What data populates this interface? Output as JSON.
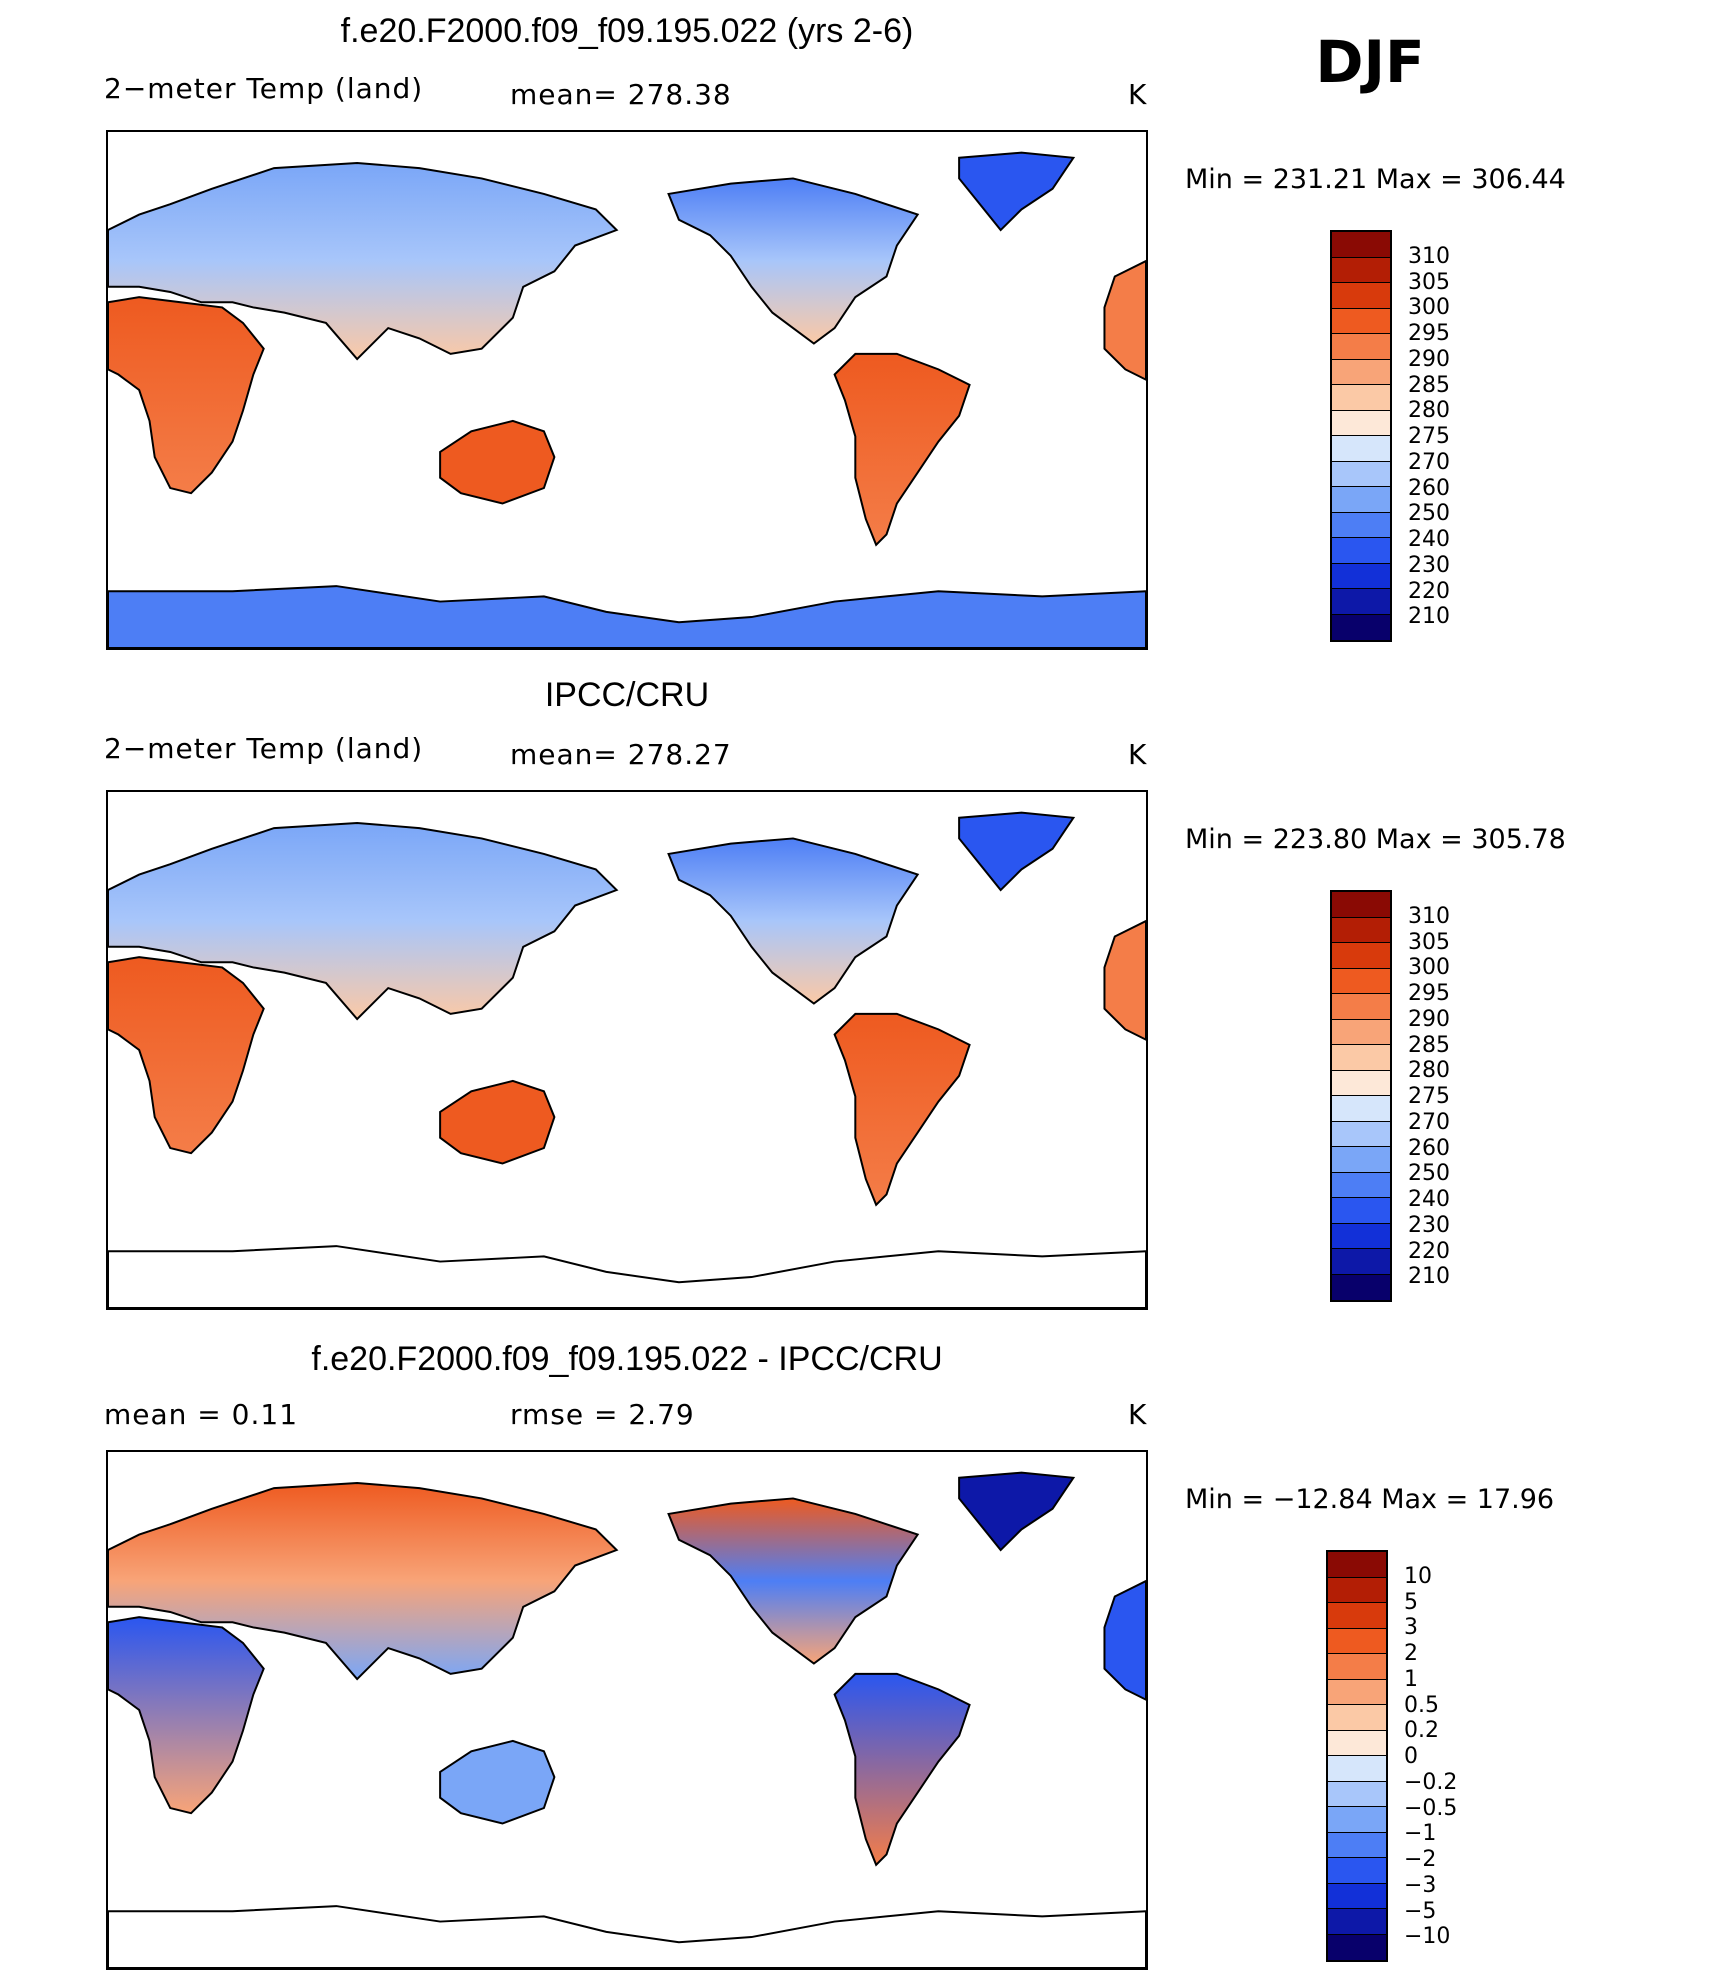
{
  "season": "DJF",
  "palette": {
    "temp": [
      "#08006b",
      "#0d18a8",
      "#1230d8",
      "#2a56f0",
      "#4d7ef5",
      "#7aa6f7",
      "#a8c6fa",
      "#d6e6fb",
      "#fde8d8",
      "#fbc9a6",
      "#f8a478",
      "#f47d48",
      "#ee5a20",
      "#d83a0c",
      "#b31e05",
      "#8a0a04"
    ],
    "diff": [
      "#08006b",
      "#0d18a8",
      "#1230d8",
      "#2a56f0",
      "#4d7ef5",
      "#7aa6f7",
      "#a8c6fa",
      "#d6e6fb",
      "#fde8d8",
      "#fbc9a6",
      "#f8a478",
      "#f47d48",
      "#ee5a20",
      "#d83a0c",
      "#b31e05",
      "#8a0a04"
    ]
  },
  "panels": [
    {
      "title": "f.e20.F2000.f09_f09.195.022 (yrs 2-6)",
      "left_label": "2−meter Temp (land)",
      "mid_label": "mean=  278.38",
      "units": "K",
      "min_max": "Min  =  231.21  Max  =  306.44",
      "colorbar_labels": [
        "310",
        "305",
        "300",
        "295",
        "290",
        "285",
        "280",
        "275",
        "270",
        "260",
        "250",
        "240",
        "230",
        "220",
        "210"
      ],
      "antarctica_filled": true
    },
    {
      "title": "IPCC/CRU",
      "left_label": "2−meter Temp (land)",
      "mid_label": "mean=  278.27",
      "units": "K",
      "min_max": "Min  =  223.80  Max  =  305.78",
      "colorbar_labels": [
        "310",
        "305",
        "300",
        "295",
        "290",
        "285",
        "280",
        "275",
        "270",
        "260",
        "250",
        "240",
        "230",
        "220",
        "210"
      ],
      "antarctica_filled": false
    },
    {
      "title": "f.e20.F2000.f09_f09.195.022 - IPCC/CRU",
      "left_label": "mean  =     0.11",
      "mid_label": "rmse  =     2.79",
      "units": "K",
      "min_max": "Min  =  −12.84  Max  =     17.96",
      "colorbar_labels": [
        "10",
        "5",
        "3",
        "2",
        "1",
        "0.5",
        "0.2",
        "0",
        "−0.2",
        "−0.5",
        "−1",
        "−2",
        "−3",
        "−5",
        "−10"
      ],
      "antarctica_filled": false
    }
  ]
}
